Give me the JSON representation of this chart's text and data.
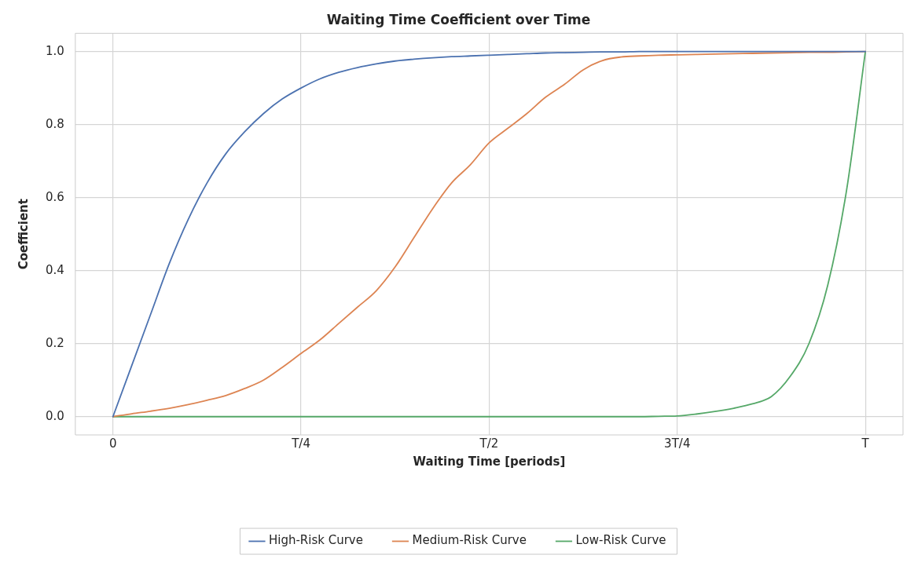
{
  "chart_data": {
    "type": "line",
    "title": "Waiting Time Coefficient over Time",
    "xlabel": "Waiting Time [periods]",
    "ylabel": "Coefficient",
    "categories": [
      "0",
      null,
      null,
      null,
      null,
      null,
      null,
      null,
      null,
      null,
      "T/4",
      null,
      null,
      null,
      null,
      null,
      null,
      null,
      null,
      null,
      "T/2",
      null,
      null,
      null,
      null,
      null,
      null,
      null,
      null,
      null,
      "3T/4",
      null,
      null,
      null,
      null,
      null,
      null,
      null,
      null,
      null,
      "T"
    ],
    "ylim": [
      -0.05,
      1.05
    ],
    "yticks": [
      {
        "value": 0,
        "label": "0.0"
      },
      {
        "value": 0.2,
        "label": "0.2"
      },
      {
        "value": 0.4,
        "label": "0.4"
      },
      {
        "value": 0.6,
        "label": "0.6"
      },
      {
        "value": 0.8,
        "label": "0.8"
      },
      {
        "value": 1,
        "label": "1.0"
      }
    ],
    "grid": true,
    "legend": "bottom",
    "marker": "none",
    "line_style": "solid",
    "series": [
      {
        "name": "High-Risk Curve",
        "color": "#4c72b0",
        "values": [
          0,
          0.14,
          0.28,
          0.42,
          0.54,
          0.64,
          0.72,
          0.78,
          0.83,
          0.87,
          0.9,
          0.925,
          0.943,
          0.956,
          0.966,
          0.974,
          0.979,
          0.983,
          0.986,
          0.988,
          0.99,
          0.992,
          0.994,
          0.996,
          0.997,
          0.998,
          0.999,
          0.999,
          1,
          1,
          1,
          1,
          1,
          1,
          1,
          1,
          1,
          1,
          1,
          1,
          1
        ]
      },
      {
        "name": "Medium-Risk Curve",
        "color": "#dd8452",
        "values": [
          0,
          0.008,
          0.015,
          0.023,
          0.033,
          0.045,
          0.058,
          0.077,
          0.1,
          0.135,
          0.173,
          0.21,
          0.255,
          0.3,
          0.345,
          0.41,
          0.49,
          0.57,
          0.64,
          0.69,
          0.75,
          0.79,
          0.83,
          0.875,
          0.91,
          0.95,
          0.975,
          0.985,
          0.988,
          0.99,
          0.991,
          0.992,
          0.993,
          0.994,
          0.995,
          0.996,
          0.997,
          0.998,
          0.998,
          0.999,
          1
        ]
      },
      {
        "name": "Low-Risk Curve",
        "color": "#55a868",
        "values": [
          0,
          0,
          0,
          0,
          0,
          0,
          0,
          0,
          0,
          0,
          0,
          0,
          0,
          0,
          0,
          0,
          0,
          0,
          0,
          0,
          0,
          0,
          0,
          0,
          0,
          0,
          0,
          0,
          0,
          0.001,
          0.002,
          0.007,
          0.014,
          0.023,
          0.035,
          0.055,
          0.11,
          0.2,
          0.36,
          0.62,
          1
        ]
      }
    ]
  }
}
